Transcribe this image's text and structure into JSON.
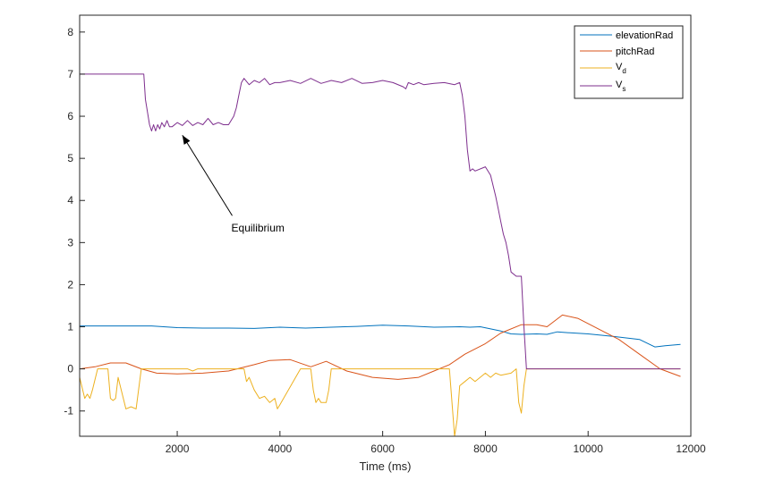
{
  "chart_data": {
    "type": "line",
    "title": "",
    "xlabel": "Time (ms)",
    "ylabel": "",
    "xlim": [
      100,
      12000
    ],
    "ylim": [
      -1.6,
      8.4
    ],
    "xticks": [
      2000,
      4000,
      6000,
      8000,
      10000,
      12000
    ],
    "yticks": [
      -1,
      0,
      1,
      2,
      3,
      4,
      5,
      6,
      7,
      8
    ],
    "grid": false,
    "legend_position": "top-right",
    "colors": {
      "axis": "#262626",
      "background": "#ffffff"
    },
    "series": [
      {
        "name": "elevationRad",
        "legend_main": "elevationRad",
        "legend_sub": "",
        "color": "#0072BD",
        "x": [
          100,
          500,
          1000,
          1500,
          2000,
          2500,
          3000,
          3500,
          4000,
          4500,
          5000,
          5500,
          6000,
          6500,
          7000,
          7500,
          7700,
          7900,
          8100,
          8300,
          8500,
          8700,
          9000,
          9200,
          9400,
          9600,
          10000,
          10500,
          11000,
          11300,
          11500,
          11800
        ],
        "values": [
          1.02,
          1.02,
          1.02,
          1.02,
          0.98,
          0.97,
          0.97,
          0.96,
          0.99,
          0.97,
          0.99,
          1.01,
          1.04,
          1.02,
          0.99,
          1.0,
          0.99,
          1.0,
          0.95,
          0.9,
          0.83,
          0.82,
          0.83,
          0.82,
          0.88,
          0.86,
          0.83,
          0.77,
          0.7,
          0.52,
          0.55,
          0.58
        ]
      },
      {
        "name": "pitchRad",
        "legend_main": "pitchRad",
        "legend_sub": "",
        "color": "#D95319",
        "x": [
          100,
          400,
          700,
          1000,
          1300,
          1600,
          2000,
          2500,
          3000,
          3500,
          3800,
          4200,
          4600,
          4900,
          5300,
          5800,
          6300,
          6700,
          7000,
          7300,
          7600,
          8000,
          8300,
          8700,
          9000,
          9200,
          9500,
          9800,
          10200,
          10600,
          11000,
          11400,
          11800
        ],
        "values": [
          0.0,
          0.05,
          0.14,
          0.14,
          0.0,
          -0.1,
          -0.12,
          -0.1,
          -0.05,
          0.1,
          0.2,
          0.22,
          0.05,
          0.18,
          -0.05,
          -0.2,
          -0.25,
          -0.2,
          -0.05,
          0.1,
          0.35,
          0.6,
          0.85,
          1.05,
          1.05,
          1.0,
          1.28,
          1.2,
          0.95,
          0.7,
          0.35,
          0.0,
          -0.18
        ]
      },
      {
        "name": "V_d",
        "legend_main": "V",
        "legend_sub": "d",
        "color": "#EDB120",
        "x": [
          100,
          200,
          250,
          300,
          350,
          450,
          550,
          650,
          700,
          750,
          800,
          850,
          1000,
          1100,
          1200,
          1300,
          1500,
          1800,
          2100,
          2200,
          2300,
          2400,
          2500,
          2600,
          2700,
          2800,
          3000,
          3300,
          3350,
          3400,
          3500,
          3600,
          3700,
          3800,
          3900,
          3950,
          4000,
          4400,
          4600,
          4650,
          4700,
          4750,
          4800,
          4900,
          4950,
          5000,
          5100,
          7300,
          7350,
          7400,
          7450,
          7500,
          7600,
          7700,
          7800,
          8000,
          8100,
          8200,
          8300,
          8500,
          8600,
          8650,
          8700,
          8750,
          8800,
          9000,
          11800
        ],
        "values": [
          -0.2,
          -0.7,
          -0.6,
          -0.7,
          -0.5,
          0.0,
          0.0,
          0.0,
          -0.7,
          -0.75,
          -0.7,
          -0.2,
          -0.95,
          -0.9,
          -0.95,
          0.0,
          0.0,
          0.0,
          0.0,
          0.0,
          -0.05,
          0.0,
          0.0,
          0.0,
          0.0,
          0.0,
          0.0,
          0.0,
          -0.3,
          -0.2,
          -0.5,
          -0.7,
          -0.65,
          -0.8,
          -0.7,
          -0.95,
          -0.85,
          0.0,
          0.0,
          -0.5,
          -0.8,
          -0.7,
          -0.8,
          -0.8,
          -0.5,
          0.0,
          0.0,
          0.0,
          -0.8,
          -1.6,
          -1.2,
          -0.4,
          -0.3,
          -0.2,
          -0.3,
          -0.1,
          -0.2,
          -0.1,
          -0.15,
          -0.1,
          0.0,
          -0.8,
          -1.05,
          -0.4,
          0.0,
          0.0,
          0.0
        ]
      },
      {
        "name": "V_s",
        "legend_main": "V",
        "legend_sub": "s",
        "color": "#7E2F8E",
        "x": [
          100,
          1350,
          1380,
          1420,
          1460,
          1500,
          1540,
          1580,
          1620,
          1660,
          1700,
          1750,
          1800,
          1850,
          1900,
          2000,
          2100,
          2200,
          2300,
          2400,
          2500,
          2600,
          2700,
          2800,
          2900,
          3000,
          3100,
          3150,
          3200,
          3250,
          3300,
          3400,
          3500,
          3600,
          3700,
          3800,
          3900,
          4000,
          4200,
          4400,
          4600,
          4800,
          5000,
          5200,
          5400,
          5600,
          5800,
          6000,
          6200,
          6400,
          6450,
          6500,
          6600,
          6700,
          6800,
          7000,
          7200,
          7400,
          7500,
          7550,
          7600,
          7650,
          7700,
          7750,
          7800,
          8000,
          8100,
          8200,
          8250,
          8300,
          8350,
          8400,
          8450,
          8500,
          8600,
          8700,
          8750,
          8800,
          11800
        ],
        "values": [
          7.0,
          7.0,
          6.4,
          6.1,
          5.8,
          5.65,
          5.8,
          5.65,
          5.8,
          5.7,
          5.85,
          5.75,
          5.9,
          5.75,
          5.75,
          5.85,
          5.78,
          5.9,
          5.78,
          5.85,
          5.8,
          5.95,
          5.8,
          5.85,
          5.8,
          5.8,
          6.0,
          6.2,
          6.5,
          6.8,
          6.9,
          6.75,
          6.85,
          6.8,
          6.9,
          6.75,
          6.8,
          6.8,
          6.85,
          6.78,
          6.9,
          6.78,
          6.85,
          6.8,
          6.9,
          6.78,
          6.8,
          6.85,
          6.8,
          6.7,
          6.65,
          6.8,
          6.75,
          6.8,
          6.75,
          6.78,
          6.8,
          6.75,
          6.8,
          6.5,
          6.0,
          5.2,
          4.7,
          4.75,
          4.7,
          4.8,
          4.6,
          4.1,
          3.8,
          3.5,
          3.2,
          3.0,
          2.7,
          2.3,
          2.2,
          2.2,
          1.0,
          0.0,
          0.0
        ]
      }
    ],
    "annotations": [
      {
        "text": "Equilibrium",
        "text_x": 3280,
        "text_y": 3.3,
        "arrow_to_x": 2100,
        "arrow_to_y": 5.55
      }
    ]
  }
}
